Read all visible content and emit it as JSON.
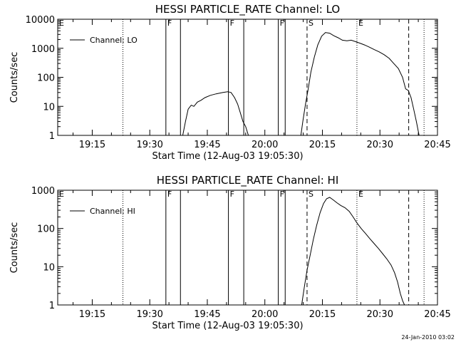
{
  "chart_data": [
    {
      "type": "line",
      "title": "HESSI PARTICLE_RATE Channel: LO",
      "xlabel": "Start Time (12-Aug-03 19:05:30)",
      "ylabel": "Counts/sec",
      "yscale": "log",
      "xlim": [
        "19:06",
        "20:45"
      ],
      "ylim": [
        1,
        10000
      ],
      "x_ticks": [
        "19:15",
        "19:30",
        "19:45",
        "20:00",
        "20:15",
        "20:30",
        "20:45"
      ],
      "y_ticks": [
        "1",
        "10",
        "100",
        "1000",
        "10000"
      ],
      "legend": {
        "placement": "top-left",
        "entries": [
          "Channel: LO"
        ]
      },
      "flag_lines": [
        {
          "label": "E",
          "time": "19:06",
          "style": "solid"
        },
        {
          "label": "",
          "time": "19:23",
          "style": "dotted"
        },
        {
          "label": "F",
          "time": "19:34.2",
          "style": "solid"
        },
        {
          "label": "",
          "time": "19:38",
          "style": "solid"
        },
        {
          "label": "F",
          "time": "19:50.5",
          "style": "solid"
        },
        {
          "label": "",
          "time": "19:54.5",
          "style": "solid"
        },
        {
          "label": "F",
          "time": "20:03.5",
          "style": "solid"
        },
        {
          "label": "",
          "time": "20:05.3",
          "style": "solid"
        },
        {
          "label": "S",
          "time": "20:11",
          "style": "dashed"
        },
        {
          "label": "E",
          "time": "20:24",
          "style": "dotted"
        },
        {
          "label": "",
          "time": "20:37.5",
          "style": "dashed"
        },
        {
          "label": "",
          "time": "20:41.5",
          "style": "dotted"
        }
      ],
      "series": [
        {
          "name": "Channel: LO",
          "segments": [
            {
              "x": [
                "19:38.6",
                "19:39.3",
                "19:40.0",
                "19:40.8",
                "19:41.5",
                "19:42.4",
                "19:43.3",
                "19:44.4",
                "19:45.8",
                "19:47.3",
                "19:49.1",
                "19:50.3",
                "19:51.2",
                "19:52.1",
                "19:52.9",
                "19:53.6",
                "19:54.3",
                "19:55.0",
                "19:55.7"
              ],
              "y": [
                1,
                3,
                8,
                11,
                10,
                14,
                16,
                20,
                24,
                27,
                30,
                32,
                30,
                20,
                12,
                6,
                3,
                2,
                1
              ]
            },
            {
              "x": [
                "20:09.4",
                "20:09.9",
                "20:10.6",
                "20:11.3",
                "20:12.0",
                "20:12.9",
                "20:13.8",
                "20:14.8",
                "20:15.8",
                "20:16.9",
                "20:18.0",
                "20:19.1",
                "20:20.2",
                "20:21.4",
                "20:22.5",
                "20:23.6",
                "20:24.8",
                "20:26.0",
                "20:27.2",
                "20:28.5",
                "20:29.8",
                "20:31.1",
                "20:32.4",
                "20:33.6",
                "20:34.8",
                "20:35.9",
                "20:36.7",
                "20:37.4",
                "20:38.1",
                "20:38.8",
                "20:39.5",
                "20:40.2"
              ],
              "y": [
                1,
                3,
                12,
                40,
                150,
                500,
                1300,
                2600,
                3500,
                3300,
                2700,
                2300,
                1900,
                1800,
                1900,
                1700,
                1500,
                1300,
                1100,
                900,
                750,
                600,
                450,
                300,
                200,
                100,
                40,
                35,
                20,
                8,
                3,
                1
              ]
            }
          ]
        }
      ]
    },
    {
      "type": "line",
      "title": "HESSI PARTICLE_RATE Channel: HI",
      "xlabel": "Start Time (12-Aug-03 19:05:30)",
      "ylabel": "Counts/sec",
      "yscale": "log",
      "xlim": [
        "19:06",
        "20:45"
      ],
      "ylim": [
        1,
        1000
      ],
      "x_ticks": [
        "19:15",
        "19:30",
        "19:45",
        "20:00",
        "20:15",
        "20:30",
        "20:45"
      ],
      "y_ticks": [
        "1",
        "10",
        "100",
        "1000"
      ],
      "legend": {
        "placement": "top-left",
        "entries": [
          "Channel: HI"
        ]
      },
      "flag_lines": [
        {
          "label": "E",
          "time": "19:06",
          "style": "solid"
        },
        {
          "label": "",
          "time": "19:23",
          "style": "dotted"
        },
        {
          "label": "F",
          "time": "19:34.2",
          "style": "solid"
        },
        {
          "label": "",
          "time": "19:38",
          "style": "solid"
        },
        {
          "label": "F",
          "time": "19:50.5",
          "style": "solid"
        },
        {
          "label": "",
          "time": "19:54.5",
          "style": "solid"
        },
        {
          "label": "F",
          "time": "20:03.5",
          "style": "solid"
        },
        {
          "label": "",
          "time": "20:05.3",
          "style": "solid"
        },
        {
          "label": "S",
          "time": "20:11",
          "style": "dashed"
        },
        {
          "label": "E",
          "time": "20:24",
          "style": "dotted"
        },
        {
          "label": "",
          "time": "20:37.5",
          "style": "dashed"
        },
        {
          "label": "",
          "time": "20:41.5",
          "style": "dotted"
        }
      ],
      "series": [
        {
          "name": "Channel: HI",
          "segments": [
            {
              "x": [
                "20:09.6",
                "20:10.3",
                "20:11.0",
                "20:11.8",
                "20:12.6",
                "20:13.5",
                "20:14.4",
                "20:15.3",
                "20:16.1",
                "20:16.9",
                "20:17.8",
                "20:18.8",
                "20:19.8",
                "20:20.9",
                "20:22.0",
                "20:23.0",
                "20:24.0",
                "20:25.1",
                "20:26.2",
                "20:27.3",
                "20:28.5",
                "20:29.6",
                "20:30.7",
                "20:31.8",
                "20:32.9",
                "20:33.8",
                "20:34.6",
                "20:35.3",
                "20:35.9",
                "20:36.4"
              ],
              "y": [
                1,
                3,
                8,
                20,
                50,
                120,
                260,
                450,
                600,
                650,
                560,
                470,
                400,
                350,
                280,
                200,
                140,
                100,
                75,
                55,
                40,
                30,
                22,
                16,
                11,
                7,
                4,
                2,
                1.3,
                1
              ]
            }
          ]
        }
      ]
    }
  ],
  "footer": {
    "stamp": "24-Jan-2010 03:02"
  }
}
